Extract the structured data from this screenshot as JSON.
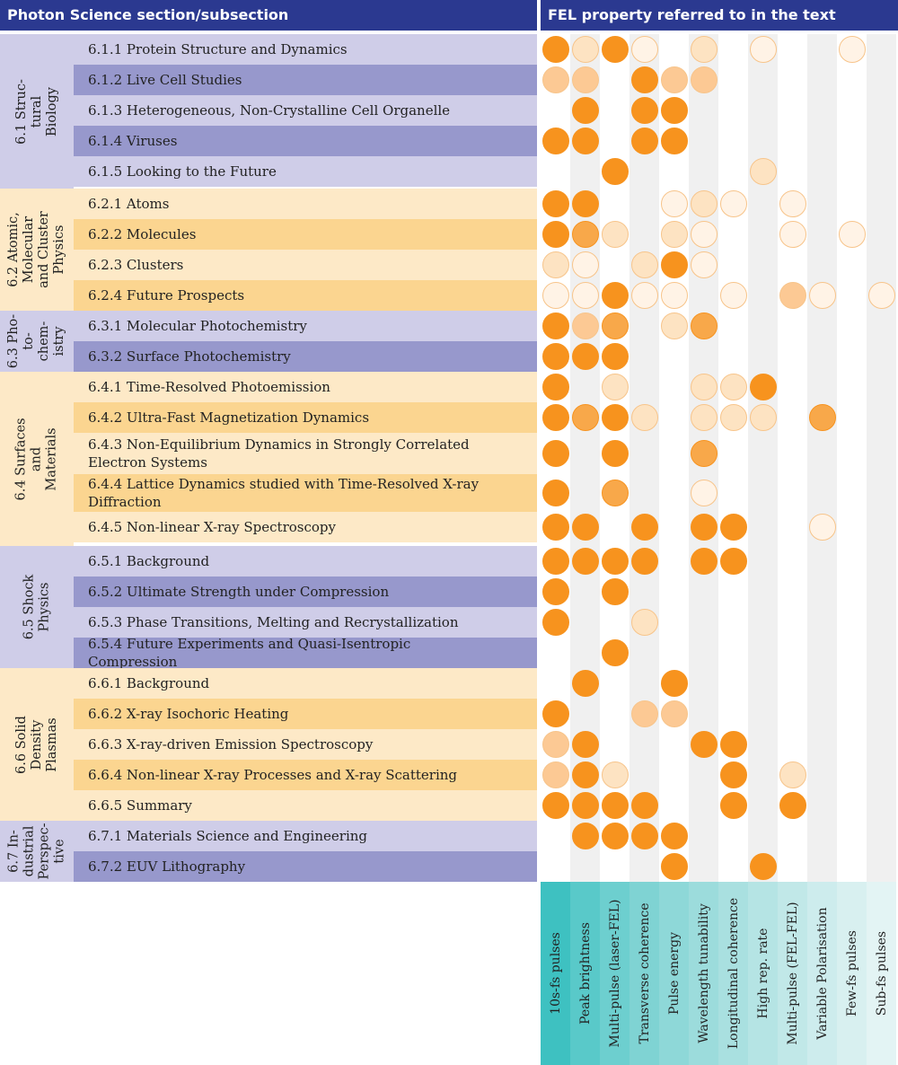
{
  "header": {
    "left": "Photon Science section/subsection",
    "right": "FEL property referred to in the text"
  },
  "colors": {
    "header_bg": "#2b3990",
    "purple_light": "#cfcde8",
    "purple_dark": "#9798cc",
    "orange_light": "#fde9c7",
    "orange_dark": "#fbd590",
    "stripe": "#f0f0f0",
    "dot_levels": [
      "#f7931e",
      "#f8a84a",
      "#fcc994",
      "#fde3c2",
      "#fff3e6"
    ],
    "dot_border": "#f7c48a"
  },
  "properties": [
    "10s-fs pulses",
    "Peak brightness",
    "Multi-pulse (laser-FEL)",
    "Transverse coherence",
    "Pulse energy",
    "Wavelength tunability",
    "Longitudinal coherence",
    "High rep. rate",
    "Multi-pulse (FEL-FEL)",
    "Variable Polarisation",
    "Few-fs pulses",
    "Sub-fs pulses"
  ],
  "legend_colors": [
    "#3ec1c1",
    "#59c9c9",
    "#6dcfcf",
    "#7fd3d3",
    "#8ed8d8",
    "#9cdcdc",
    "#a9e0e0",
    "#b5e4e4",
    "#c1e8e8",
    "#cdeced",
    "#d8f0f0",
    "#e3f4f4"
  ],
  "sections": [
    {
      "label": "6.1 Struc-\ntural\nBiology",
      "theme": "purple",
      "rows": [
        {
          "label": "6.1.1 Protein Structure and Dynamics",
          "dots": [
            0,
            3,
            0,
            4,
            null,
            3,
            null,
            4,
            null,
            null,
            4,
            null
          ]
        },
        {
          "label": "6.1.2 Live Cell Studies",
          "dots": [
            2,
            2,
            null,
            0,
            2,
            2,
            null,
            null,
            null,
            null,
            null,
            null
          ]
        },
        {
          "label": "6.1.3 Heterogeneous, Non-Crystalline Cell Organelle",
          "dots": [
            null,
            0,
            null,
            0,
            0,
            null,
            null,
            null,
            null,
            null,
            null,
            null
          ]
        },
        {
          "label": "6.1.4 Viruses",
          "dots": [
            0,
            0,
            null,
            0,
            0,
            null,
            null,
            null,
            null,
            null,
            null,
            null
          ]
        },
        {
          "label": "6.1.5 Looking to the Future",
          "dots": [
            null,
            null,
            0,
            null,
            null,
            null,
            null,
            3,
            null,
            null,
            null,
            null
          ]
        }
      ]
    },
    {
      "label": "6.2 Atomic,\nMolecular\nand Cluster\nPhysics",
      "theme": "orange",
      "rows": [
        {
          "label": "6.2.1 Atoms",
          "dots": [
            0,
            0,
            null,
            null,
            4,
            3,
            4,
            null,
            4,
            null,
            null,
            null
          ]
        },
        {
          "label": "6.2.2 Molecules",
          "dots": [
            0,
            1,
            3,
            null,
            3,
            4,
            null,
            null,
            4,
            null,
            4,
            null
          ]
        },
        {
          "label": "6.2.3 Clusters",
          "dots": [
            3,
            4,
            null,
            3,
            0,
            4,
            null,
            null,
            null,
            null,
            null,
            null
          ]
        },
        {
          "label": "6.2.4 Future Prospects",
          "dots": [
            4,
            4,
            0,
            4,
            4,
            null,
            4,
            null,
            2,
            4,
            null,
            4
          ]
        }
      ]
    },
    {
      "label": "6.3 Pho-\nto-\nchem-\nistry",
      "theme": "purple",
      "rows": [
        {
          "label": "6.3.1 Molecular Photochemistry",
          "dots": [
            0,
            2,
            1,
            null,
            3,
            1,
            null,
            null,
            null,
            null,
            null,
            null
          ]
        },
        {
          "label": "6.3.2 Surface Photochemistry",
          "dots": [
            0,
            0,
            0,
            null,
            null,
            null,
            null,
            null,
            null,
            null,
            null,
            null
          ]
        }
      ]
    },
    {
      "label": "6.4 Surfaces\nand\nMaterials",
      "theme": "orange",
      "rows": [
        {
          "label": "6.4.1 Time-Resolved Photoemission",
          "dots": [
            0,
            null,
            3,
            null,
            null,
            3,
            3,
            0,
            null,
            null,
            null,
            null
          ]
        },
        {
          "label": "6.4.2 Ultra-Fast Magnetization Dynamics",
          "dots": [
            0,
            1,
            0,
            3,
            null,
            3,
            3,
            3,
            null,
            1,
            null,
            null
          ]
        },
        {
          "label": "6.4.3 Non-Equilibrium Dynamics in Strongly Correlated Electron Systems",
          "dots": [
            0,
            null,
            0,
            null,
            null,
            1,
            null,
            null,
            null,
            null,
            null,
            null
          ]
        },
        {
          "label": "6.4.4 Lattice Dynamics studied with Time-Resolved X-ray Diffraction",
          "dots": [
            0,
            null,
            1,
            null,
            null,
            4,
            null,
            null,
            null,
            null,
            null,
            null
          ]
        },
        {
          "label": "6.4.5 Non-linear X-ray Spectroscopy",
          "dots": [
            0,
            0,
            null,
            0,
            null,
            0,
            0,
            null,
            null,
            4,
            null,
            null
          ]
        }
      ]
    },
    {
      "label": "6.5 Shock\nPhysics",
      "theme": "purple",
      "rows": [
        {
          "label": "6.5.1 Background",
          "dots": [
            0,
            0,
            0,
            0,
            null,
            0,
            0,
            null,
            null,
            null,
            null,
            null
          ]
        },
        {
          "label": "6.5.2 Ultimate Strength under Compression",
          "dots": [
            0,
            null,
            0,
            null,
            null,
            null,
            null,
            null,
            null,
            null,
            null,
            null
          ]
        },
        {
          "label": "6.5.3 Phase Transitions, Melting and Recrystallization",
          "dots": [
            0,
            null,
            null,
            3,
            null,
            null,
            null,
            null,
            null,
            null,
            null,
            null
          ]
        },
        {
          "label": "6.5.4 Future Experiments and Quasi-Isentropic Compression",
          "dots": [
            null,
            null,
            0,
            null,
            null,
            null,
            null,
            null,
            null,
            null,
            null,
            null
          ]
        }
      ]
    },
    {
      "label": "6.6 Solid\nDensity\nPlasmas",
      "theme": "orange",
      "rows": [
        {
          "label": "6.6.1 Background",
          "dots": [
            null,
            0,
            null,
            null,
            0,
            null,
            null,
            null,
            null,
            null,
            null,
            null
          ]
        },
        {
          "label": "6.6.2 X-ray Isochoric Heating",
          "dots": [
            0,
            null,
            null,
            2,
            2,
            null,
            null,
            null,
            null,
            null,
            null,
            null
          ]
        },
        {
          "label": "6.6.3 X-ray-driven Emission Spectroscopy",
          "dots": [
            2,
            0,
            null,
            null,
            null,
            0,
            0,
            null,
            null,
            null,
            null,
            null
          ]
        },
        {
          "label": "6.6.4 Non-linear X-ray Processes and X-ray Scattering",
          "dots": [
            2,
            0,
            3,
            null,
            null,
            null,
            0,
            null,
            3,
            null,
            null,
            null
          ]
        },
        {
          "label": "6.6.5 Summary",
          "dots": [
            0,
            0,
            0,
            0,
            null,
            null,
            0,
            null,
            0,
            null,
            null,
            null
          ]
        }
      ]
    },
    {
      "label": "6.7 In-\ndustrial\nPerspec-\ntive",
      "theme": "purple",
      "rows": [
        {
          "label": "6.7.1 Materials Science and Engineering",
          "dots": [
            null,
            0,
            0,
            0,
            0,
            null,
            null,
            null,
            null,
            null,
            null,
            null
          ]
        },
        {
          "label": "6.7.2 EUV Lithography",
          "dots": [
            null,
            null,
            null,
            null,
            0,
            null,
            null,
            0,
            null,
            null,
            null,
            null
          ]
        }
      ]
    }
  ]
}
